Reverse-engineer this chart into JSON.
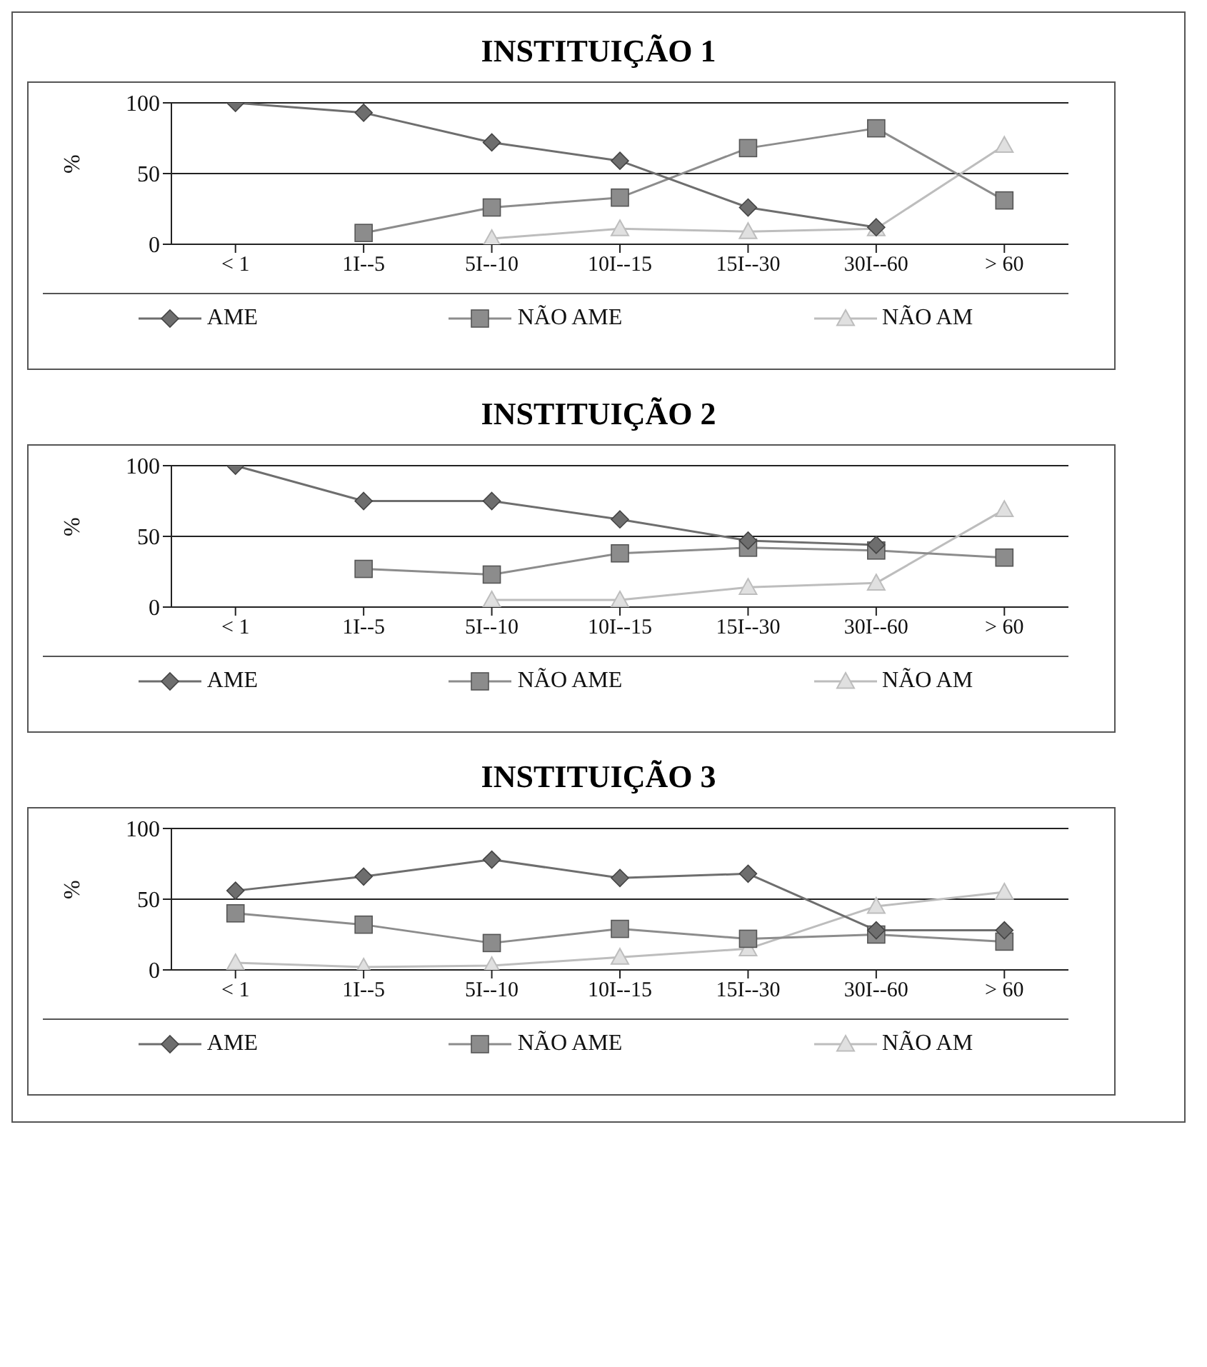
{
  "chart_data": [
    {
      "type": "line",
      "title": "INSTITUIÇÃO 1",
      "ylabel": "%",
      "categories": [
        "< 1",
        "1I--5",
        "5I--10",
        "10I--15",
        "15I--30",
        "30I--60",
        "> 60"
      ],
      "ylim": [
        0,
        100
      ],
      "yticks": [
        0,
        50,
        100
      ],
      "grid": "y",
      "legend": "bottom",
      "series": [
        {
          "name": "AME",
          "color": "#6e6e6e",
          "marker": "diamond",
          "values": [
            100,
            93,
            72,
            59,
            26,
            12,
            null
          ]
        },
        {
          "name": "NÃO AME",
          "color": "#8c8c8c",
          "marker": "square",
          "values": [
            null,
            8,
            26,
            33,
            68,
            82,
            31
          ]
        },
        {
          "name": "NÃO AM",
          "color": "#bdbdbd",
          "marker": "triangle",
          "values": [
            null,
            null,
            4,
            11,
            9,
            11,
            70
          ]
        }
      ]
    },
    {
      "type": "line",
      "title": "INSTITUIÇÃO 2",
      "ylabel": "%",
      "categories": [
        "< 1",
        "1I--5",
        "5I--10",
        "10I--15",
        "15I--30",
        "30I--60",
        "> 60"
      ],
      "ylim": [
        0,
        100
      ],
      "yticks": [
        0,
        50,
        100
      ],
      "grid": "y",
      "legend": "bottom",
      "series": [
        {
          "name": "AME",
          "color": "#6e6e6e",
          "marker": "diamond",
          "values": [
            100,
            75,
            75,
            62,
            47,
            44,
            null
          ]
        },
        {
          "name": "NÃO AME",
          "color": "#8c8c8c",
          "marker": "square",
          "values": [
            null,
            27,
            23,
            38,
            42,
            40,
            35
          ]
        },
        {
          "name": "NÃO AM",
          "color": "#bdbdbd",
          "marker": "triangle",
          "values": [
            null,
            null,
            5,
            5,
            14,
            17,
            69
          ]
        }
      ]
    },
    {
      "type": "line",
      "title": "INSTITUIÇÃO 3",
      "ylabel": "%",
      "categories": [
        "< 1",
        "1I--5",
        "5I--10",
        "10I--15",
        "15I--30",
        "30I--60",
        "> 60"
      ],
      "ylim": [
        0,
        100
      ],
      "yticks": [
        0,
        50,
        100
      ],
      "grid": "y",
      "legend": "bottom",
      "series": [
        {
          "name": "AME",
          "color": "#6e6e6e",
          "marker": "diamond",
          "values": [
            56,
            66,
            78,
            65,
            68,
            28,
            28
          ]
        },
        {
          "name": "NÃO AME",
          "color": "#8c8c8c",
          "marker": "square",
          "values": [
            40,
            32,
            19,
            29,
            22,
            25,
            20
          ]
        },
        {
          "name": "NÃO AM",
          "color": "#bdbdbd",
          "marker": "triangle",
          "values": [
            5,
            2,
            3,
            9,
            15,
            45,
            55
          ]
        }
      ]
    }
  ]
}
